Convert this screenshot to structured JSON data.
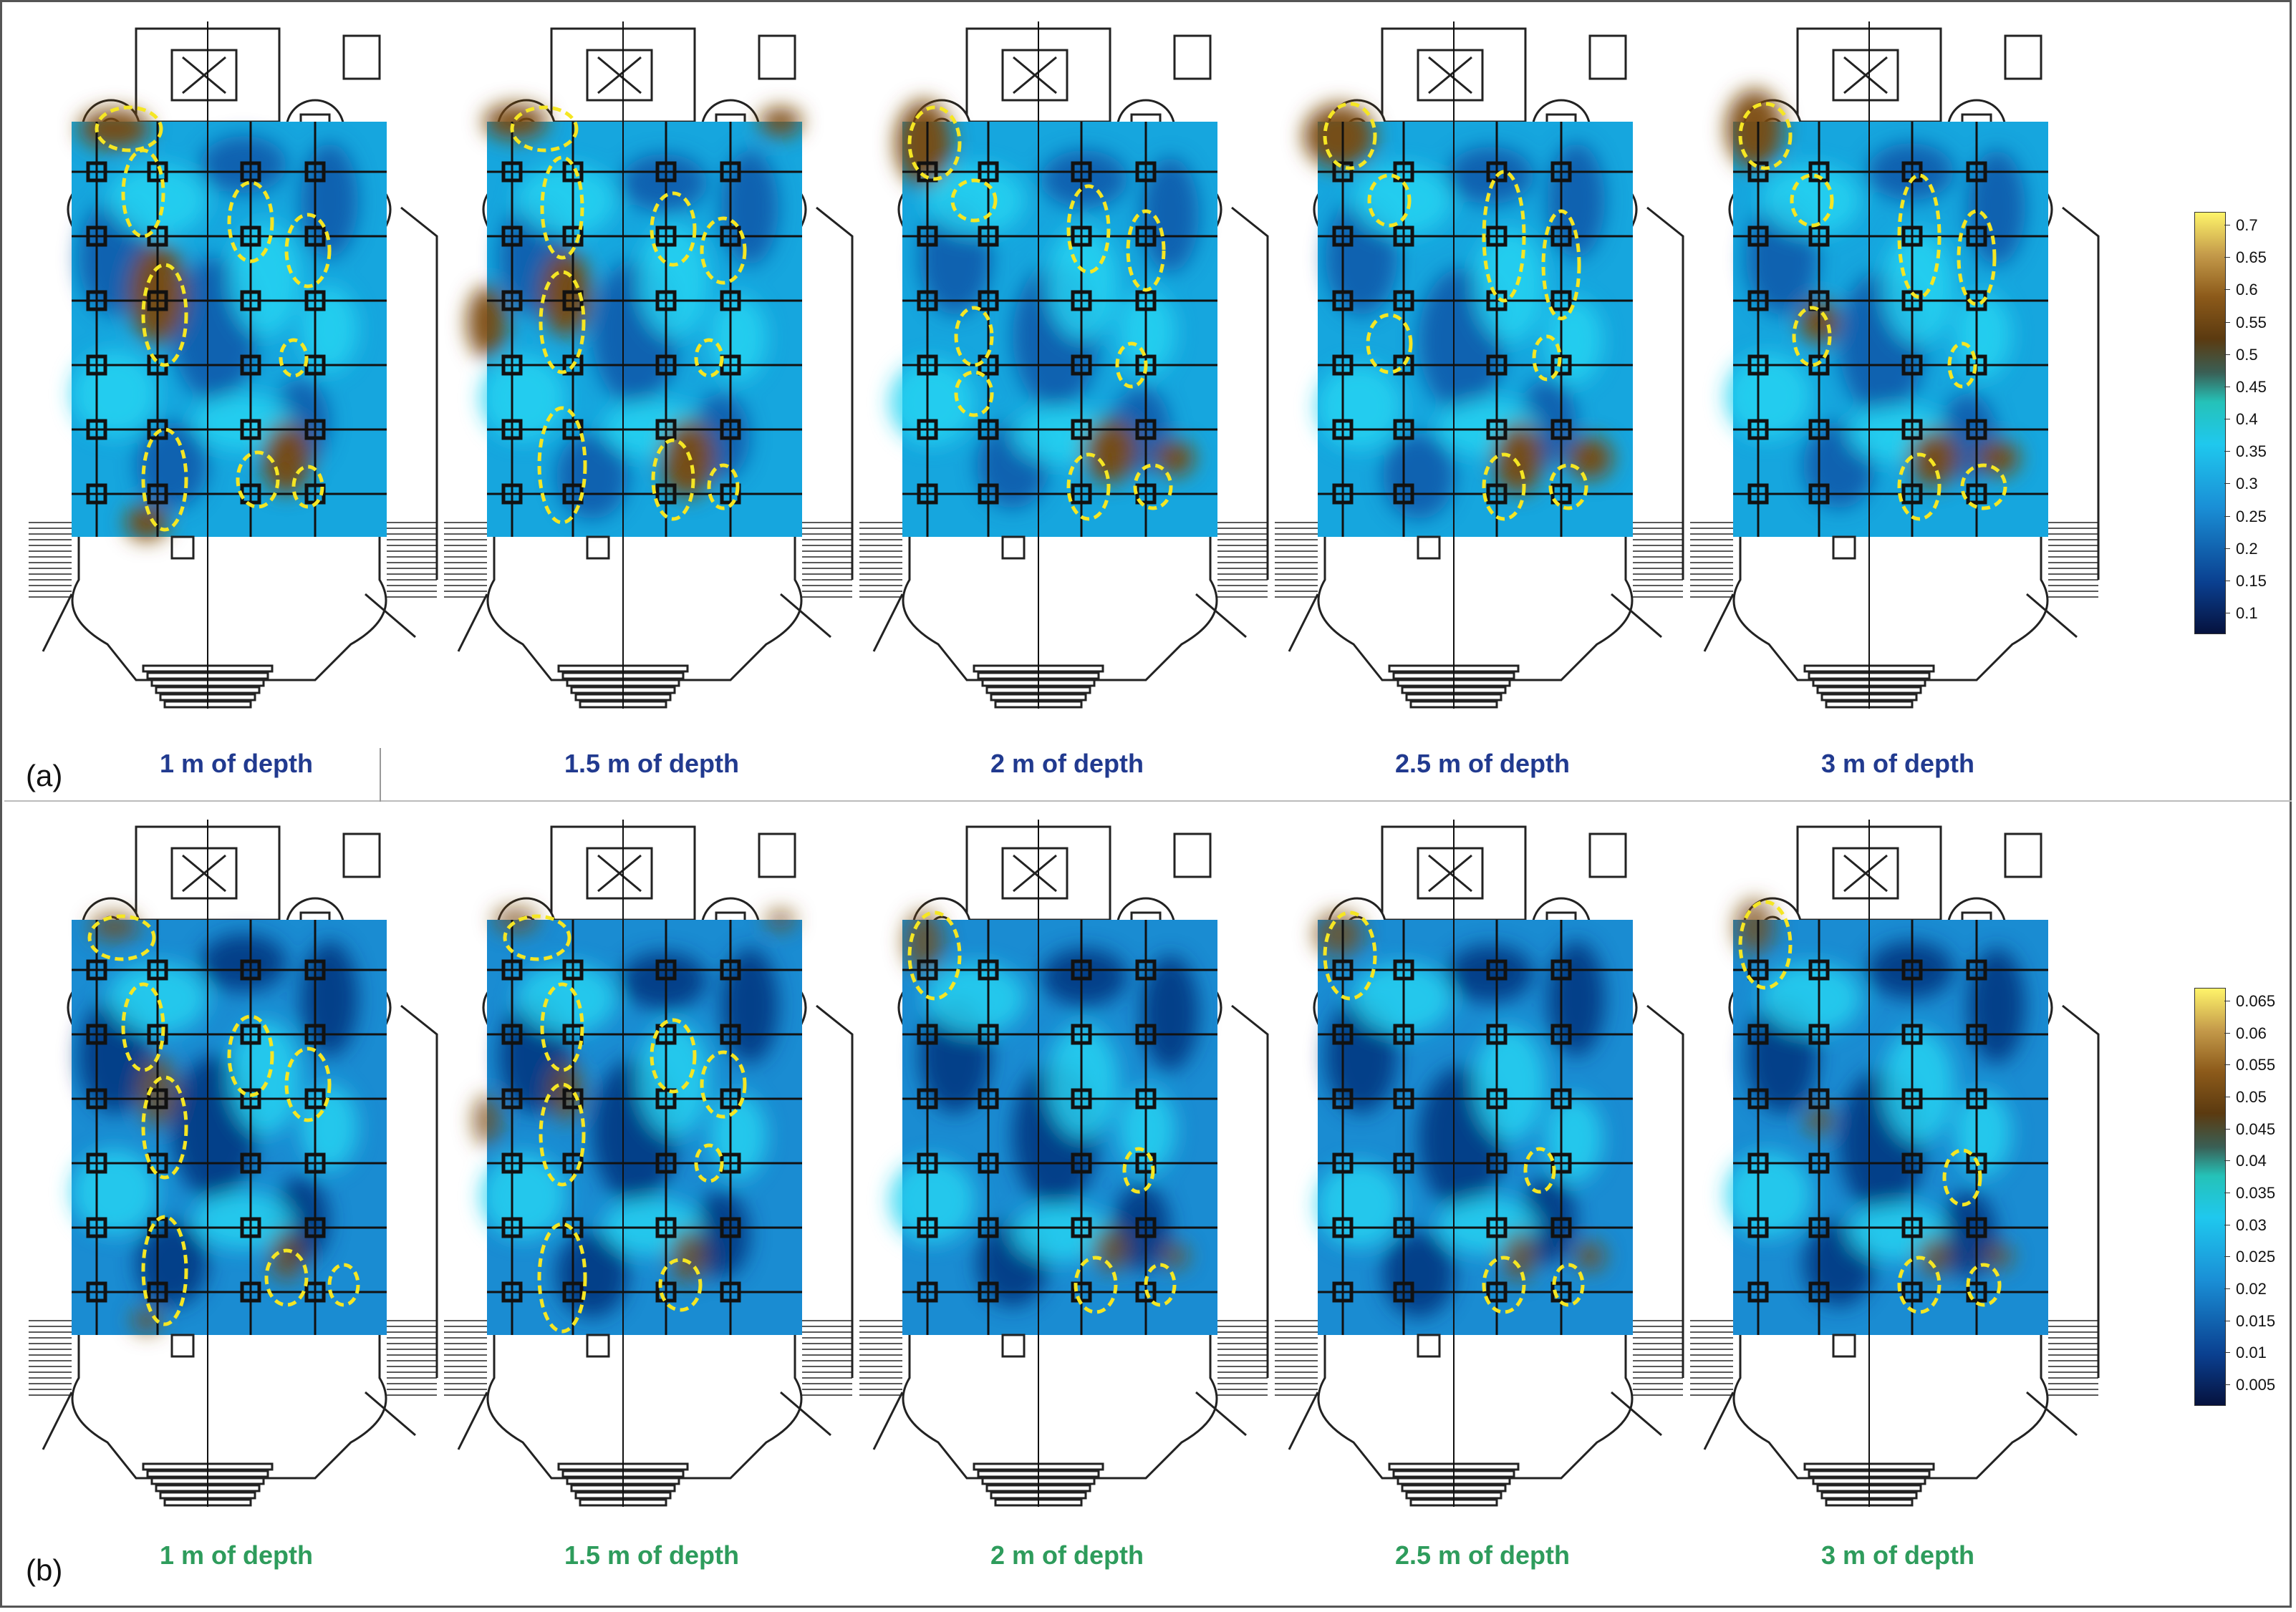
{
  "figure": {
    "rows": [
      {
        "id": "a",
        "label": "(a)",
        "captions": [
          "1 m of depth",
          "1.5 m of depth",
          "2 m of depth",
          "2.5 m of depth",
          "3 m of depth"
        ],
        "colorbar": {
          "ticks": [
            "0.7",
            "0.65",
            "0.6",
            "0.55",
            "0.5",
            "0.45",
            "0.4",
            "0.35",
            "0.3",
            "0.25",
            "0.2",
            "0.15",
            "0.1"
          ],
          "min": 0.1,
          "max": 0.73
        }
      },
      {
        "id": "b",
        "label": "(b)",
        "captions": [
          "1 m of depth",
          "1.5 m of depth",
          "2 m of depth",
          "2.5 m of depth",
          "3 m of depth"
        ],
        "colorbar": {
          "ticks": [
            "0.065",
            "0.06",
            "0.055",
            "0.05",
            "0.045",
            "0.04",
            "0.035",
            "0.03",
            "0.025",
            "0.02",
            "0.015",
            "0.01",
            "0.005"
          ],
          "min": 0.003,
          "max": 0.068
        }
      }
    ],
    "colors": {
      "caption_a": "#213a8f",
      "caption_b": "#2e9c5c",
      "highlight_ellipse": "#f5e623",
      "low": "#0a3f8f",
      "mid": "#1fc8ee",
      "high": "#7a4a10"
    }
  }
}
